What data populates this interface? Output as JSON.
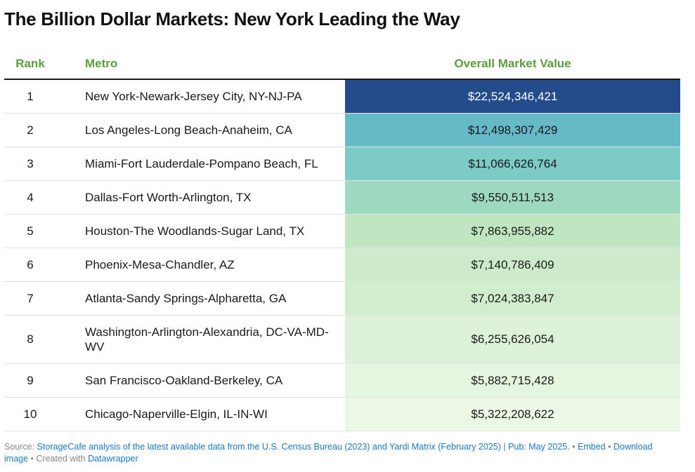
{
  "title": "The Billion Dollar Markets: New York Leading the Way",
  "table": {
    "headers": {
      "rank": "Rank",
      "metro": "Metro",
      "value": "Overall Market Value"
    }
  },
  "chart_data": {
    "type": "table",
    "title": "The Billion Dollar Markets: New York Leading the Way",
    "columns": [
      "Rank",
      "Metro",
      "Overall Market Value"
    ],
    "rows": [
      {
        "rank": "1",
        "metro": "New York-Newark-Jersey City, NY-NJ-PA",
        "value_label": "$22,524,346,421",
        "value": 22524346421,
        "color": "#244b8c",
        "text_color": "#ffffff"
      },
      {
        "rank": "2",
        "metro": "Los Angeles-Long Beach-Anaheim, CA",
        "value_label": "$12,498,307,429",
        "value": 12498307429,
        "color": "#66b9c7",
        "text_color": "#1a1a1a"
      },
      {
        "rank": "3",
        "metro": "Miami-Fort Lauderdale-Pompano Beach, FL",
        "value_label": "$11,066,626,764",
        "value": 11066626764,
        "color": "#7ccbc6",
        "text_color": "#1a1a1a"
      },
      {
        "rank": "4",
        "metro": "Dallas-Fort Worth-Arlington, TX",
        "value_label": "$9,550,511,513",
        "value": 9550511513,
        "color": "#9dd9c0",
        "text_color": "#1a1a1a"
      },
      {
        "rank": "5",
        "metro": "Houston-The Woodlands-Sugar Land, TX",
        "value_label": "$7,863,955,882",
        "value": 7863955882,
        "color": "#bfe6c1",
        "text_color": "#1a1a1a"
      },
      {
        "rank": "6",
        "metro": "Phoenix-Mesa-Chandler, AZ",
        "value_label": "$7,140,786,409",
        "value": 7140786409,
        "color": "#cdebcb",
        "text_color": "#1a1a1a"
      },
      {
        "rank": "7",
        "metro": "Atlanta-Sandy Springs-Alpharetta, GA",
        "value_label": "$7,024,383,847",
        "value": 7024383847,
        "color": "#d0edcd",
        "text_color": "#1a1a1a"
      },
      {
        "rank": "8",
        "metro": "Washington-Arlington-Alexandria, DC-VA-MD-WV",
        "value_label": "$6,255,626,054",
        "value": 6255626054,
        "color": "#def2da",
        "text_color": "#1a1a1a"
      },
      {
        "rank": "9",
        "metro": "San Francisco-Oakland-Berkeley, CA",
        "value_label": "$5,882,715,428",
        "value": 5882715428,
        "color": "#e4f5e0",
        "text_color": "#1a1a1a"
      },
      {
        "rank": "10",
        "metro": "Chicago-Naperville-Elgin, IL-IN-WI",
        "value_label": "$5,322,208,622",
        "value": 5322208622,
        "color": "#ebf8e6",
        "text_color": "#1a1a1a"
      }
    ]
  },
  "footer": {
    "source_label": "Source:",
    "source_text": "StorageCafe analysis of the latest available data from the U.S. Census Bureau (2023) and Yardi Matrix (February 2025) | Pub: May 2025.",
    "sep1": "•",
    "embed": "Embed",
    "sep2": "•",
    "download": "Download image",
    "sep3": "•",
    "created": "Created with",
    "datawrapper": "Datawrapper"
  }
}
